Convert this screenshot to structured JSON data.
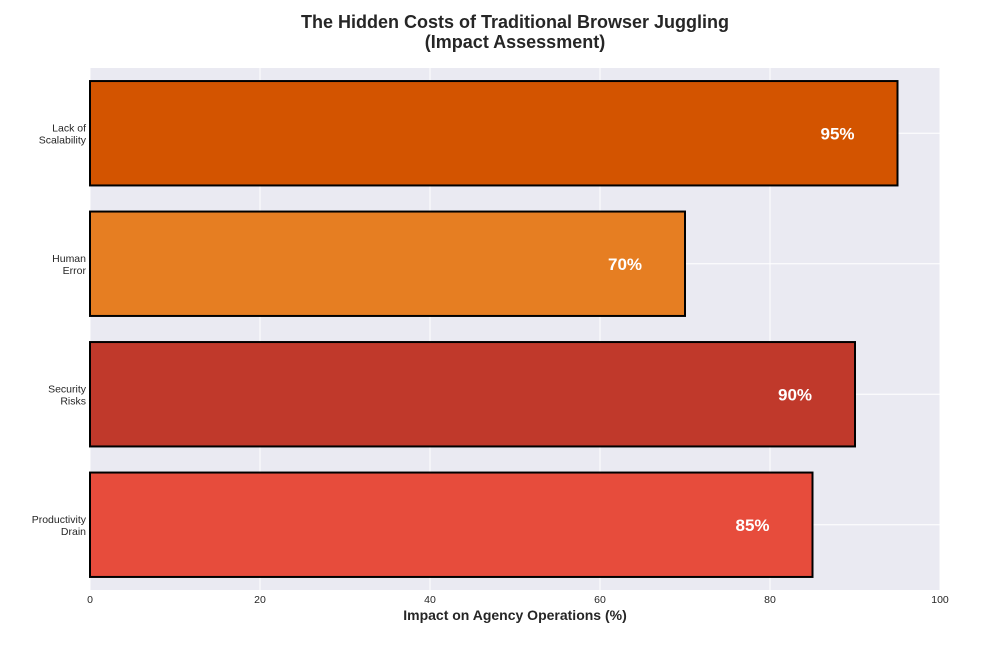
{
  "chart_data": {
    "type": "bar",
    "orientation": "horizontal",
    "title": "The Hidden Costs of Traditional Browser Juggling",
    "subtitle": "(Impact Assessment)",
    "xlabel": "Impact on Agency Operations (%)",
    "ylabel": "",
    "xlim": [
      0,
      100
    ],
    "x_ticks": [
      0,
      20,
      40,
      60,
      80,
      100
    ],
    "grid": true,
    "categories": [
      [
        "Lack of",
        "Scalability"
      ],
      [
        "Human",
        "Error"
      ],
      [
        "Security",
        "Risks"
      ],
      [
        "Productivity",
        "Drain"
      ]
    ],
    "values": [
      95,
      70,
      90,
      85
    ],
    "data_labels": [
      "95%",
      "70%",
      "90%",
      "85%"
    ],
    "colors": [
      "#d35400",
      "#e67e22",
      "#c0392b",
      "#e74c3c"
    ],
    "background": "#eaeaf2",
    "gridline_color": "#ffffff",
    "bar_edge_color": "#000000",
    "data_label_color": "#ffffff"
  }
}
